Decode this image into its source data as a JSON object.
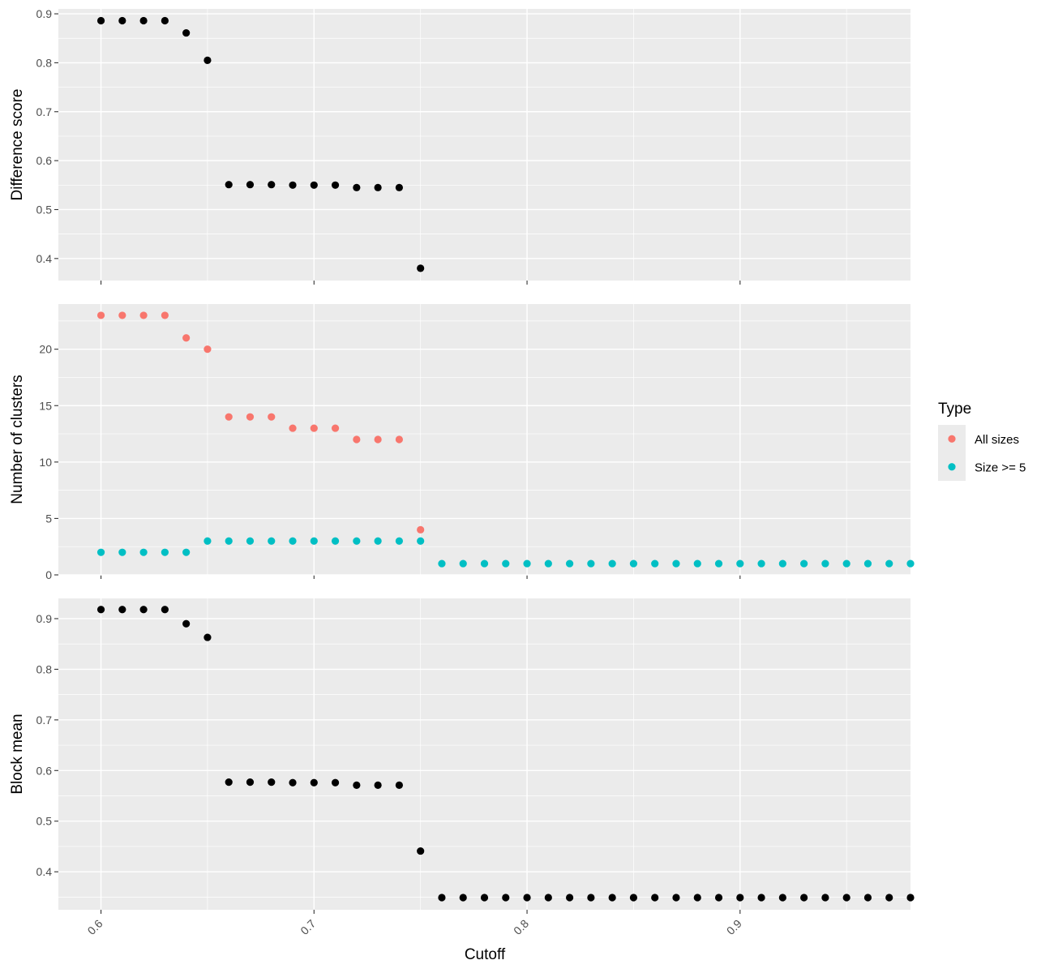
{
  "chart_data": {
    "type": "scatter",
    "xlabel": "Cutoff",
    "x_range": [
      0.58,
      0.98
    ],
    "x_ticks": [
      0.6,
      0.7,
      0.8,
      0.9
    ],
    "x_tick_labels": [
      "0.6",
      "0.7",
      "0.8",
      "0.9"
    ],
    "grid": true,
    "legend": {
      "title": "Type",
      "placement": "right",
      "entries": [
        {
          "label": "All sizes",
          "color": "#F8766D"
        },
        {
          "label": "Size >= 5",
          "color": "#00BFC4"
        }
      ]
    },
    "panels": [
      {
        "ylabel": "Difference score",
        "y_range": [
          0.355,
          0.91
        ],
        "y_ticks": [
          0.4,
          0.5,
          0.6,
          0.7,
          0.8,
          0.9
        ],
        "y_tick_labels": [
          "0.4",
          "0.5",
          "0.6",
          "0.7",
          "0.8",
          "0.9"
        ],
        "series": [
          {
            "color": "#000000",
            "x": [
              0.6,
              0.61,
              0.62,
              0.63,
              0.64,
              0.65,
              0.66,
              0.67,
              0.68,
              0.69,
              0.7,
              0.71,
              0.72,
              0.73,
              0.74,
              0.75
            ],
            "y": [
              0.886,
              0.886,
              0.886,
              0.886,
              0.861,
              0.805,
              0.551,
              0.551,
              0.551,
              0.55,
              0.55,
              0.55,
              0.545,
              0.545,
              0.545,
              0.38
            ]
          }
        ]
      },
      {
        "ylabel": "Number of clusters",
        "y_range": [
          0,
          24
        ],
        "y_ticks": [
          0,
          5,
          10,
          15,
          20
        ],
        "y_tick_labels": [
          "0",
          "5",
          "10",
          "15",
          "20"
        ],
        "series": [
          {
            "name": "All sizes",
            "color": "#F8766D",
            "x": [
              0.6,
              0.61,
              0.62,
              0.63,
              0.64,
              0.65,
              0.66,
              0.67,
              0.68,
              0.69,
              0.7,
              0.71,
              0.72,
              0.73,
              0.74,
              0.75
            ],
            "y": [
              23,
              23,
              23,
              23,
              21,
              20,
              14,
              14,
              14,
              13,
              13,
              13,
              12,
              12,
              12,
              4
            ]
          },
          {
            "name": "Size >= 5",
            "color": "#00BFC4",
            "x": [
              0.6,
              0.61,
              0.62,
              0.63,
              0.64,
              0.65,
              0.66,
              0.67,
              0.68,
              0.69,
              0.7,
              0.71,
              0.72,
              0.73,
              0.74,
              0.75,
              0.76,
              0.77,
              0.78,
              0.79,
              0.8,
              0.81,
              0.82,
              0.83,
              0.84,
              0.85,
              0.86,
              0.87,
              0.88,
              0.89,
              0.9,
              0.91,
              0.92,
              0.93,
              0.94,
              0.95,
              0.96,
              0.97,
              0.98
            ],
            "y": [
              2,
              2,
              2,
              2,
              2,
              3,
              3,
              3,
              3,
              3,
              3,
              3,
              3,
              3,
              3,
              3,
              1,
              1,
              1,
              1,
              1,
              1,
              1,
              1,
              1,
              1,
              1,
              1,
              1,
              1,
              1,
              1,
              1,
              1,
              1,
              1,
              1,
              1,
              1
            ]
          }
        ]
      },
      {
        "ylabel": "Block mean",
        "y_range": [
          0.325,
          0.94
        ],
        "y_ticks": [
          0.4,
          0.5,
          0.6,
          0.7,
          0.8,
          0.9
        ],
        "y_tick_labels": [
          "0.4",
          "0.5",
          "0.6",
          "0.7",
          "0.8",
          "0.9"
        ],
        "series": [
          {
            "color": "#000000",
            "x": [
              0.6,
              0.61,
              0.62,
              0.63,
              0.64,
              0.65,
              0.66,
              0.67,
              0.68,
              0.69,
              0.7,
              0.71,
              0.72,
              0.73,
              0.74,
              0.75,
              0.76,
              0.77,
              0.78,
              0.79,
              0.8,
              0.81,
              0.82,
              0.83,
              0.84,
              0.85,
              0.86,
              0.87,
              0.88,
              0.89,
              0.9,
              0.91,
              0.92,
              0.93,
              0.94,
              0.95,
              0.96,
              0.97,
              0.98
            ],
            "y": [
              0.918,
              0.918,
              0.918,
              0.918,
              0.89,
              0.863,
              0.577,
              0.577,
              0.577,
              0.576,
              0.576,
              0.576,
              0.571,
              0.571,
              0.571,
              0.441,
              0.349,
              0.349,
              0.349,
              0.349,
              0.349,
              0.349,
              0.349,
              0.349,
              0.349,
              0.349,
              0.349,
              0.349,
              0.349,
              0.349,
              0.349,
              0.349,
              0.349,
              0.349,
              0.349,
              0.349,
              0.349,
              0.349,
              0.349
            ]
          }
        ]
      }
    ]
  }
}
